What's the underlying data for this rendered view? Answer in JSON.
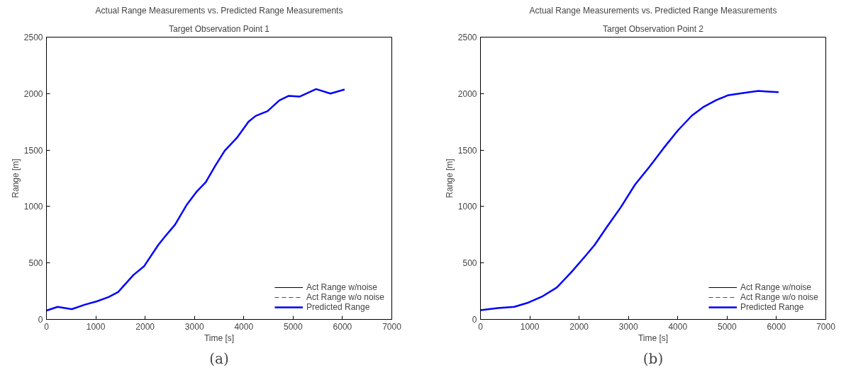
{
  "chart_data": [
    {
      "type": "line",
      "title": "Actual Range Measurements vs. Predicted Range Measurements",
      "subtitle": "Target Observation Point 1",
      "xlabel": "Time [s]",
      "ylabel": "Range [m]",
      "x": [
        0,
        226,
        514,
        779,
        1019,
        1260,
        1452,
        1764,
        1981,
        2269,
        2413,
        2606,
        2846,
        3038,
        3231,
        3423,
        3615,
        3856,
        4096,
        4240,
        4481,
        4721,
        4913,
        5130,
        5466,
        5755,
        6043
      ],
      "series": [
        {
          "name": "Act Range w/noise",
          "color": "#000000",
          "line_style": "solid",
          "values": [
            null,
            null,
            null,
            null,
            null,
            null,
            null,
            null,
            null,
            null,
            null,
            null,
            null,
            null,
            null,
            null,
            null,
            null,
            null,
            null,
            null,
            null,
            null,
            null,
            null,
            null,
            null
          ]
        },
        {
          "name": "Act Range w/o noise",
          "color": "#ff0000",
          "line_style": "dashed",
          "values": [
            null,
            null,
            null,
            null,
            null,
            null,
            null,
            null,
            null,
            null,
            null,
            null,
            null,
            null,
            null,
            null,
            null,
            null,
            null,
            null,
            null,
            null,
            null,
            null,
            null,
            null,
            null
          ]
        },
        {
          "name": "Predicted Range",
          "color": "#0000ff",
          "line_style": "solid",
          "values": [
            78,
            111,
            91,
            131,
            160,
            198,
            242,
            394,
            472,
            661,
            739,
            839,
            1017,
            1128,
            1217,
            1362,
            1495,
            1606,
            1751,
            1802,
            1844,
            1940,
            1980,
            1973,
            2040,
            2000,
            2036
          ]
        }
      ],
      "xlim": [
        0,
        7000
      ],
      "xticks": [
        0,
        1000,
        2000,
        3000,
        4000,
        5000,
        6000,
        7000
      ],
      "ylim": [
        0,
        2500
      ],
      "yticks": [
        0,
        500,
        1000,
        1500,
        2000,
        2500
      ],
      "grid": false,
      "legend": "bottom right",
      "annotations": [
        "(a)"
      ]
    },
    {
      "type": "line",
      "title": "Actual Range Measurements vs. Predicted Range Measurements",
      "subtitle": "Target Observation Point 2",
      "xlabel": "Time [s]",
      "ylabel": "Range [m]",
      "x": [
        0,
        346,
        683,
        971,
        1260,
        1548,
        1837,
        2125,
        2317,
        2558,
        2846,
        3135,
        3423,
        3712,
        4000,
        4288,
        4529,
        4769,
        5010,
        5346,
        5635,
        5827,
        6043
      ],
      "series": [
        {
          "name": "Act Range w/noise",
          "color": "#000000",
          "line_style": "solid",
          "values": [
            null,
            null,
            null,
            null,
            null,
            null,
            null,
            null,
            null,
            null,
            null,
            null,
            null,
            null,
            null,
            null,
            null,
            null,
            null,
            null,
            null,
            null,
            null
          ]
        },
        {
          "name": "Act Range w/o noise",
          "color": "#ff0000",
          "line_style": "dashed",
          "values": [
            null,
            null,
            null,
            null,
            null,
            null,
            null,
            null,
            null,
            null,
            null,
            null,
            null,
            null,
            null,
            null,
            null,
            null,
            null,
            null,
            null,
            null,
            null
          ]
        },
        {
          "name": "Predicted Range",
          "color": "#0000ff",
          "line_style": "solid",
          "values": [
            82,
            100,
            111,
            149,
            205,
            283,
            416,
            561,
            661,
            816,
            994,
            1195,
            1350,
            1517,
            1673,
            1806,
            1884,
            1940,
            1984,
            2007,
            2024,
            2018,
            2013
          ]
        }
      ],
      "xlim": [
        0,
        7000
      ],
      "xticks": [
        0,
        1000,
        2000,
        3000,
        4000,
        5000,
        6000,
        7000
      ],
      "ylim": [
        0,
        2500
      ],
      "yticks": [
        0,
        500,
        1000,
        1500,
        2000,
        2500
      ],
      "grid": false,
      "legend": "bottom right",
      "annotations": [
        "(b)"
      ]
    }
  ]
}
